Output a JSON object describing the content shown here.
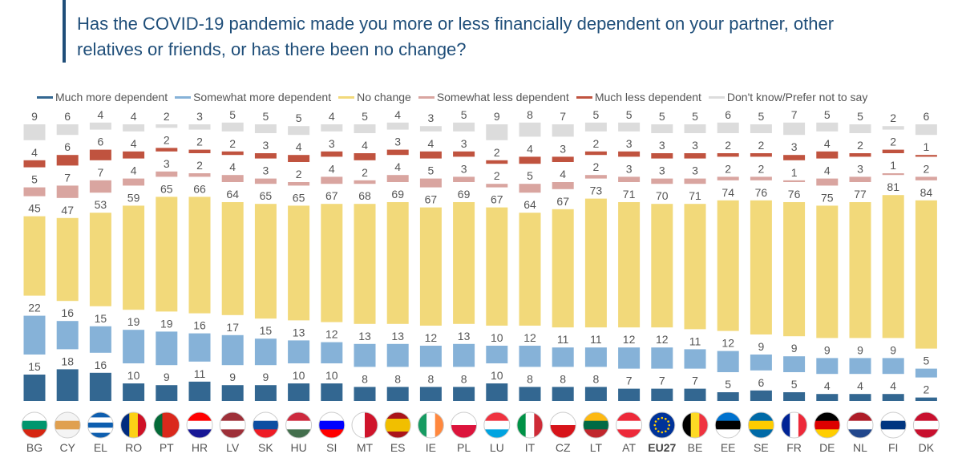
{
  "title": "Has the COVID-19 pandemic made you more or less financially dependent on your partner, other relatives or friends, or has there been no change?",
  "chart_data": {
    "type": "bar",
    "stacked": true,
    "title": "Has the COVID-19 pandemic made you more or less financially dependent on your partner, other relatives or friends, or has there been no change?",
    "legend_position": "top",
    "categories": [
      "BG",
      "CY",
      "EL",
      "RO",
      "PT",
      "HR",
      "LV",
      "SK",
      "HU",
      "SI",
      "MT",
      "ES",
      "IE",
      "PL",
      "LU",
      "IT",
      "CZ",
      "LT",
      "AT",
      "EU27",
      "BE",
      "EE",
      "SE",
      "FR",
      "DE",
      "NL",
      "FI",
      "DK"
    ],
    "series": [
      {
        "name": "Much more dependent",
        "color": "#336791",
        "values": [
          15,
          18,
          16,
          10,
          9,
          11,
          9,
          9,
          10,
          10,
          8,
          8,
          8,
          8,
          10,
          8,
          8,
          8,
          7,
          7,
          7,
          5,
          6,
          5,
          4,
          4,
          4,
          2
        ]
      },
      {
        "name": "Somewhat more dependent",
        "color": "#86b2d8",
        "values": [
          22,
          16,
          15,
          19,
          19,
          16,
          17,
          15,
          13,
          12,
          13,
          13,
          12,
          13,
          10,
          12,
          11,
          11,
          12,
          12,
          11,
          12,
          9,
          9,
          9,
          9,
          9,
          5
        ]
      },
      {
        "name": "No change",
        "color": "#f2d97a",
        "values": [
          45,
          47,
          53,
          59,
          65,
          66,
          64,
          65,
          65,
          67,
          68,
          69,
          67,
          69,
          67,
          64,
          67,
          73,
          71,
          70,
          71,
          74,
          76,
          76,
          75,
          77,
          81,
          84
        ]
      },
      {
        "name": "Somewhat less dependent",
        "color": "#d9a5a0",
        "values": [
          5,
          7,
          7,
          4,
          3,
          2,
          4,
          3,
          2,
          4,
          2,
          4,
          5,
          3,
          2,
          5,
          4,
          2,
          3,
          3,
          3,
          2,
          2,
          1,
          4,
          3,
          1,
          2
        ]
      },
      {
        "name": "Much less dependent",
        "color": "#c0533f",
        "values": [
          4,
          6,
          6,
          4,
          2,
          2,
          2,
          3,
          4,
          3,
          4,
          3,
          4,
          3,
          2,
          4,
          3,
          2,
          3,
          3,
          3,
          2,
          2,
          3,
          4,
          2,
          2,
          1
        ]
      },
      {
        "name": "Don't know/Prefer not to say",
        "color": "#dcdcdc",
        "values": [
          9,
          6,
          4,
          4,
          2,
          3,
          5,
          5,
          5,
          4,
          5,
          4,
          3,
          5,
          9,
          8,
          7,
          5,
          5,
          5,
          5,
          6,
          5,
          7,
          5,
          5,
          2,
          6
        ]
      }
    ],
    "highlight_category": "EU27",
    "flags": [
      {
        "dir": "h",
        "c": [
          "#ffffff",
          "#00966e",
          "#d62612"
        ]
      },
      {
        "dir": "h",
        "c": [
          "#f4f4f4",
          "#e0a050",
          "#f4f4f4"
        ]
      },
      {
        "dir": "h",
        "c": [
          "#0d5eaf",
          "#ffffff",
          "#0d5eaf",
          "#ffffff",
          "#0d5eaf"
        ]
      },
      {
        "dir": "v",
        "c": [
          "#002b7f",
          "#fcd116",
          "#ce1126"
        ]
      },
      {
        "dir": "v",
        "c": [
          "#046a38",
          "#da291c",
          "#da291c"
        ]
      },
      {
        "dir": "h",
        "c": [
          "#ff0000",
          "#ffffff",
          "#171796"
        ]
      },
      {
        "dir": "h",
        "c": [
          "#9e3039",
          "#ffffff",
          "#9e3039"
        ]
      },
      {
        "dir": "h",
        "c": [
          "#ffffff",
          "#0b4ea2",
          "#ee1c25"
        ]
      },
      {
        "dir": "h",
        "c": [
          "#cd2a3e",
          "#ffffff",
          "#436f4d"
        ]
      },
      {
        "dir": "h",
        "c": [
          "#ffffff",
          "#0000ff",
          "#ff0000"
        ]
      },
      {
        "dir": "v",
        "c": [
          "#ffffff",
          "#cf142b"
        ]
      },
      {
        "dir": "h",
        "c": [
          "#aa151b",
          "#f1bf00",
          "#f1bf00",
          "#aa151b"
        ]
      },
      {
        "dir": "v",
        "c": [
          "#169b62",
          "#ffffff",
          "#ff883e"
        ]
      },
      {
        "dir": "h",
        "c": [
          "#ffffff",
          "#dc143c"
        ]
      },
      {
        "dir": "h",
        "c": [
          "#ef3340",
          "#ffffff",
          "#00a3e0"
        ]
      },
      {
        "dir": "v",
        "c": [
          "#009246",
          "#ffffff",
          "#ce2b37"
        ]
      },
      {
        "dir": "h",
        "c": [
          "#ffffff",
          "#d7141a"
        ]
      },
      {
        "dir": "h",
        "c": [
          "#fdb913",
          "#006a44",
          "#c1272d"
        ]
      },
      {
        "dir": "h",
        "c": [
          "#ed2939",
          "#ffffff",
          "#ed2939"
        ]
      },
      {
        "dir": "h",
        "c": [
          "#003399"
        ]
      },
      {
        "dir": "v",
        "c": [
          "#000000",
          "#fdda24",
          "#ef3340"
        ]
      },
      {
        "dir": "h",
        "c": [
          "#0072ce",
          "#000000",
          "#ffffff"
        ]
      },
      {
        "dir": "h",
        "c": [
          "#006aa7",
          "#fecc00",
          "#006aa7"
        ]
      },
      {
        "dir": "v",
        "c": [
          "#002395",
          "#ffffff",
          "#ed2939"
        ]
      },
      {
        "dir": "h",
        "c": [
          "#000000",
          "#dd0000",
          "#ffce00"
        ]
      },
      {
        "dir": "h",
        "c": [
          "#ae1c28",
          "#ffffff",
          "#21468b"
        ]
      },
      {
        "dir": "h",
        "c": [
          "#ffffff",
          "#003580",
          "#ffffff"
        ]
      },
      {
        "dir": "h",
        "c": [
          "#c8102e",
          "#ffffff",
          "#c8102e"
        ]
      }
    ]
  }
}
